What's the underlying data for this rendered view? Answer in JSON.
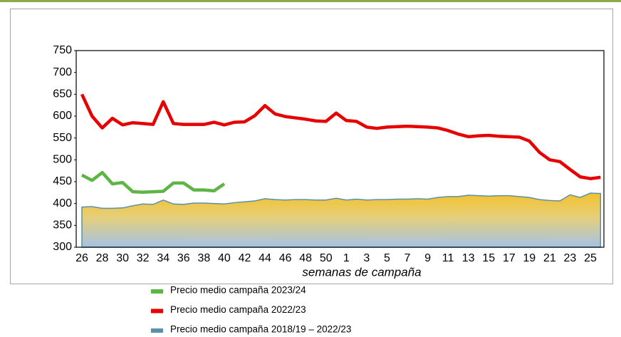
{
  "chart_data": {
    "type": "line",
    "x_label": "semanas de campaña",
    "categories": [
      "26",
      null,
      "28",
      null,
      "30",
      null,
      "32",
      null,
      "34",
      null,
      "36",
      null,
      "38",
      null,
      "40",
      null,
      "42",
      null,
      "44",
      null,
      "46",
      null,
      "48",
      null,
      "50",
      null,
      "1",
      null,
      "3",
      null,
      "5",
      null,
      "7",
      null,
      "9",
      null,
      "11",
      null,
      "13",
      null,
      "15",
      null,
      "17",
      null,
      "19",
      null,
      "21",
      null,
      "23",
      null,
      "25",
      null
    ],
    "ylim": [
      300,
      750
    ],
    "yticks": [
      300,
      350,
      400,
      450,
      500,
      550,
      600,
      650,
      700,
      750
    ],
    "grid": false,
    "legend": "bottom",
    "series": [
      {
        "name": "Precio medio campaña 2023/24",
        "color": "#5cb544",
        "kind": "line",
        "values": [
          465,
          453,
          471,
          445,
          448,
          427,
          426,
          427,
          428,
          447,
          447,
          431,
          431,
          429,
          445,
          null,
          null,
          null,
          null,
          null,
          null,
          null,
          null,
          null,
          null,
          null,
          null,
          null,
          null,
          null,
          null,
          null,
          null,
          null,
          null,
          null,
          null,
          null,
          null,
          null,
          null,
          null,
          null,
          null,
          null,
          null,
          null,
          null,
          null,
          null,
          null,
          null
        ]
      },
      {
        "name": "Precio medio campaña 2022/23",
        "color": "#e60000",
        "kind": "line",
        "values": [
          650,
          600,
          573,
          595,
          580,
          585,
          583,
          581,
          633,
          583,
          581,
          581,
          581,
          586,
          580,
          586,
          587,
          601,
          624,
          605,
          599,
          596,
          593,
          589,
          588,
          607,
          590,
          588,
          575,
          572,
          575,
          576,
          577,
          576,
          575,
          573,
          567,
          559,
          553,
          555,
          556,
          554,
          553,
          552,
          543,
          517,
          500,
          496,
          478,
          461,
          457,
          460
        ]
      },
      {
        "name": "Precio medio campaña 2018/19 – 2022/23",
        "color": "#5a90aa",
        "kind": "area",
        "values": [
          392,
          393,
          389,
          389,
          390,
          395,
          399,
          398,
          408,
          399,
          398,
          401,
          401,
          400,
          399,
          402,
          404,
          406,
          411,
          409,
          408,
          409,
          409,
          408,
          408,
          412,
          408,
          410,
          408,
          409,
          409,
          410,
          410,
          411,
          410,
          414,
          416,
          416,
          419,
          418,
          417,
          418,
          418,
          416,
          414,
          409,
          407,
          406,
          420,
          414,
          424,
          423
        ]
      }
    ]
  }
}
